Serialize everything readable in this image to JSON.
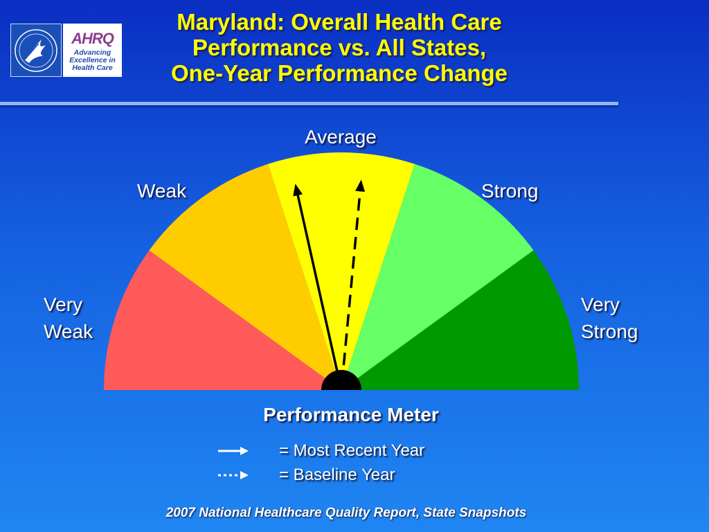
{
  "title": {
    "line1": "Maryland: Overall Health Care",
    "line2": "Performance vs. All States,",
    "line3": "One-Year Performance Change"
  },
  "logos": {
    "ahrq_mark": "AHRQ",
    "ahrq_tagline": [
      "Advancing",
      "Excellence in",
      "Health Care"
    ],
    "hhs_seal_icon": "hhs-eagle-seal-icon"
  },
  "gauge": {
    "segments": [
      {
        "label_lines": [
          "Very",
          "Weak"
        ],
        "color": "#ff5a5a"
      },
      {
        "label_lines": [
          "Weak"
        ],
        "color": "#ffcc00"
      },
      {
        "label_lines": [
          "Average"
        ],
        "color": "#ffff00"
      },
      {
        "label_lines": [
          "Strong"
        ],
        "color": "#66ff66"
      },
      {
        "label_lines": [
          "Very",
          "Strong"
        ],
        "color": "#009900"
      }
    ],
    "most_recent_year_position": 0.43,
    "baseline_year_position": 0.53,
    "hub_color": "#000000"
  },
  "meter_title": "Performance Meter",
  "legend": {
    "most_recent": "= Most Recent Year",
    "baseline": "= Baseline Year"
  },
  "footer": "2007 National Healthcare Quality Report, State Snapshots"
}
